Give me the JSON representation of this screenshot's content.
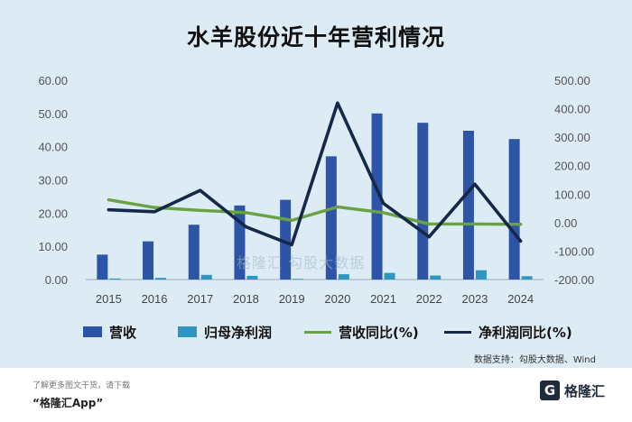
{
  "title": "水羊股份近十年营利情况",
  "chart_data": {
    "type": "bar",
    "categories": [
      "2015",
      "2016",
      "2017",
      "2018",
      "2019",
      "2020",
      "2021",
      "2022",
      "2023",
      "2024"
    ],
    "series": [
      {
        "name": "营收",
        "kind": "bar",
        "axis": "left",
        "color": "#2e55a5",
        "values": [
          7.5,
          11.5,
          16.5,
          22.3,
          24.0,
          37.1,
          50.0,
          47.2,
          44.8,
          42.3
        ]
      },
      {
        "name": "归母净利润",
        "kind": "bar",
        "axis": "left",
        "color": "#2f95c2",
        "values": [
          0.3,
          0.5,
          1.4,
          1.1,
          0.2,
          1.6,
          2.0,
          1.2,
          2.8,
          1.0
        ]
      },
      {
        "name": "营收同比(%)",
        "kind": "line",
        "axis": "right",
        "color": "#6aa145",
        "values": [
          80,
          53,
          43,
          35,
          8,
          55,
          35,
          -5,
          -5,
          -6
        ]
      },
      {
        "name": "净利润同比(%)",
        "kind": "line",
        "axis": "right",
        "color": "#16284a",
        "values": [
          45,
          38,
          113,
          -15,
          -78,
          420,
          68,
          -50,
          135,
          -65
        ]
      }
    ],
    "left_axis": {
      "ticks": [
        "60.00",
        "50.00",
        "40.00",
        "30.00",
        "20.00",
        "10.00",
        "0.00"
      ],
      "min": 0,
      "max": 60
    },
    "right_axis": {
      "ticks": [
        "500.00",
        "400.00",
        "300.00",
        "200.00",
        "100.00",
        "0.00",
        "-100.00",
        "-200.00"
      ],
      "min": -200,
      "max": 500
    },
    "grid": false,
    "legend_position": "bottom"
  },
  "source_text": "数据支持：勾股大数据、Wind",
  "watermark": "格隆汇  勾股大数据",
  "footer": {
    "tip": "了解更多图文干货，请下载",
    "app": "“格隆汇App”",
    "logo_mark": "G",
    "logo_text": "格隆汇"
  }
}
